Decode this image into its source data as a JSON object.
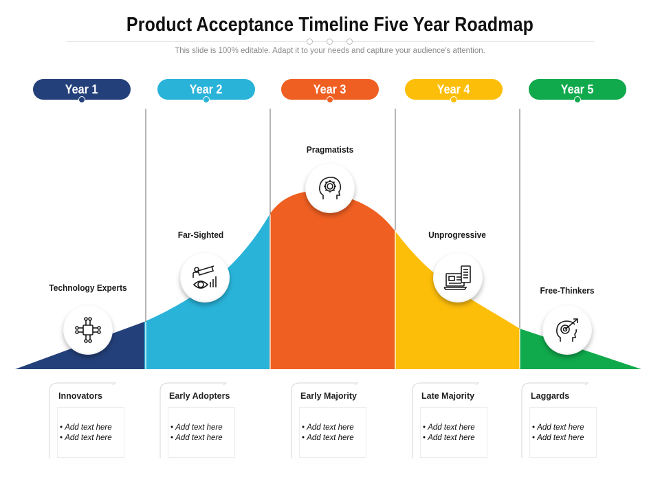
{
  "title": "Product Acceptance Timeline Five Year Roadmap",
  "subtitle": "This slide is 100% editable. Adapt it to your needs and capture your audience's attention.",
  "colors": {
    "year1": "#24407A",
    "year2": "#29B3D9",
    "year3": "#EF5F22",
    "year4": "#FDBE0A",
    "year5": "#10A94C"
  },
  "years": [
    {
      "label": "Year 1",
      "color": "#24407A"
    },
    {
      "label": "Year 2",
      "color": "#29B3D9"
    },
    {
      "label": "Year 3",
      "color": "#EF5F22"
    },
    {
      "label": "Year 4",
      "color": "#FDBE0A"
    },
    {
      "label": "Year 5",
      "color": "#10A94C"
    }
  ],
  "stages": [
    {
      "label": "Technology  Experts",
      "icon": "circuit-icon"
    },
    {
      "label": "Far-Sighted",
      "icon": "telescope-vision-icon"
    },
    {
      "label": "Pragmatists",
      "icon": "head-gear-icon"
    },
    {
      "label": "Unprogressive",
      "icon": "computer-document-icon"
    },
    {
      "label": "Free-Thinkers",
      "icon": "head-target-icon"
    }
  ],
  "segments": [
    {
      "title": "Innovators",
      "bullets": [
        "Add text here",
        "Add text here"
      ]
    },
    {
      "title": "Early Adopters",
      "bullets": [
        "Add text here",
        "Add text here"
      ]
    },
    {
      "title": "Early Majority",
      "bullets": [
        "Add text here",
        "Add text here"
      ]
    },
    {
      "title": "Late Majority",
      "bullets": [
        "Add text here",
        "Add text here"
      ]
    },
    {
      "title": "Laggards",
      "bullets": [
        "Add text here",
        "Add text here"
      ]
    }
  ]
}
